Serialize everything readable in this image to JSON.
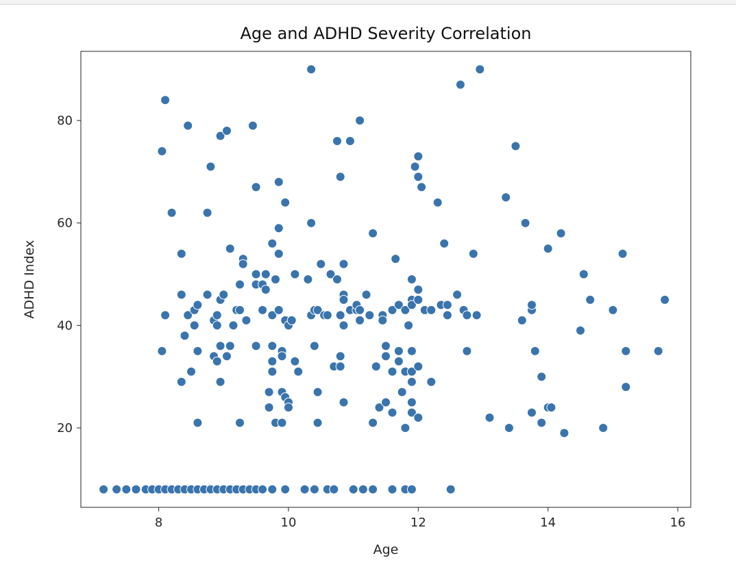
{
  "chart_data": {
    "type": "scatter",
    "title": "Age and ADHD Severity Correlation",
    "xlabel": "Age",
    "ylabel": "ADHD Index",
    "xlim": [
      6.8,
      16.2
    ],
    "ylim": [
      4.5,
      93.5
    ],
    "xticks": [
      8,
      10,
      12,
      14,
      16
    ],
    "yticks": [
      20,
      40,
      60,
      80
    ],
    "grid": false,
    "marker_color": "#3a74ad",
    "marker_edge_color": "#ffffff",
    "points": [
      [
        7.15,
        8
      ],
      [
        7.35,
        8
      ],
      [
        7.5,
        8
      ],
      [
        7.65,
        8
      ],
      [
        7.8,
        8
      ],
      [
        7.9,
        8
      ],
      [
        8.0,
        8
      ],
      [
        8.1,
        8
      ],
      [
        8.2,
        8
      ],
      [
        8.3,
        8
      ],
      [
        8.4,
        8
      ],
      [
        8.5,
        8
      ],
      [
        8.6,
        8
      ],
      [
        8.7,
        8
      ],
      [
        8.8,
        8
      ],
      [
        8.9,
        8
      ],
      [
        9.0,
        8
      ],
      [
        9.1,
        8
      ],
      [
        9.2,
        8
      ],
      [
        9.3,
        8
      ],
      [
        9.4,
        8
      ],
      [
        9.5,
        8
      ],
      [
        9.6,
        8
      ],
      [
        9.75,
        8
      ],
      [
        9.95,
        8
      ],
      [
        10.25,
        8
      ],
      [
        10.4,
        8
      ],
      [
        10.6,
        8
      ],
      [
        10.7,
        8
      ],
      [
        11.0,
        8
      ],
      [
        11.15,
        8
      ],
      [
        11.3,
        8
      ],
      [
        11.6,
        8
      ],
      [
        11.8,
        8
      ],
      [
        11.9,
        8
      ],
      [
        12.5,
        8
      ],
      [
        8.1,
        84
      ],
      [
        8.05,
        74
      ],
      [
        8.45,
        79
      ],
      [
        8.2,
        62
      ],
      [
        8.8,
        71
      ],
      [
        8.95,
        77
      ],
      [
        9.05,
        78
      ],
      [
        9.45,
        79
      ],
      [
        9.5,
        67
      ],
      [
        8.75,
        62
      ],
      [
        8.35,
        54
      ],
      [
        8.1,
        42
      ],
      [
        8.05,
        35
      ],
      [
        8.4,
        38
      ],
      [
        8.35,
        29
      ],
      [
        8.5,
        31
      ],
      [
        8.6,
        21
      ],
      [
        8.35,
        46
      ],
      [
        8.45,
        42
      ],
      [
        8.55,
        43
      ],
      [
        8.6,
        44
      ],
      [
        8.55,
        40
      ],
      [
        8.6,
        35
      ],
      [
        8.75,
        46
      ],
      [
        8.85,
        41
      ],
      [
        8.9,
        40
      ],
      [
        8.85,
        34
      ],
      [
        8.9,
        33
      ],
      [
        8.95,
        29
      ],
      [
        8.9,
        42
      ],
      [
        8.95,
        45
      ],
      [
        9.0,
        46
      ],
      [
        9.05,
        34
      ],
      [
        8.95,
        36
      ],
      [
        9.1,
        36
      ],
      [
        9.15,
        40
      ],
      [
        9.2,
        43
      ],
      [
        9.25,
        43
      ],
      [
        9.1,
        55
      ],
      [
        9.25,
        48
      ],
      [
        9.3,
        53
      ],
      [
        9.3,
        52
      ],
      [
        9.25,
        21
      ],
      [
        9.35,
        41
      ],
      [
        9.5,
        48
      ],
      [
        9.5,
        50
      ],
      [
        9.5,
        36
      ],
      [
        9.6,
        48
      ],
      [
        9.6,
        43
      ],
      [
        9.65,
        50
      ],
      [
        9.65,
        47
      ],
      [
        9.7,
        27
      ],
      [
        9.7,
        24
      ],
      [
        9.75,
        42
      ],
      [
        9.75,
        56
      ],
      [
        9.8,
        21
      ],
      [
        9.75,
        31
      ],
      [
        9.75,
        33
      ],
      [
        9.75,
        36
      ],
      [
        9.8,
        49
      ],
      [
        9.85,
        54
      ],
      [
        9.85,
        59
      ],
      [
        9.85,
        68
      ],
      [
        9.85,
        43
      ],
      [
        9.9,
        35
      ],
      [
        9.9,
        34
      ],
      [
        9.9,
        27
      ],
      [
        9.9,
        21
      ],
      [
        9.95,
        41
      ],
      [
        9.95,
        26
      ],
      [
        10.0,
        25
      ],
      [
        10.0,
        24
      ],
      [
        9.95,
        64
      ],
      [
        10.0,
        40
      ],
      [
        10.05,
        41
      ],
      [
        10.1,
        50
      ],
      [
        10.1,
        33
      ],
      [
        10.15,
        31
      ],
      [
        10.3,
        49
      ],
      [
        10.35,
        90
      ],
      [
        10.35,
        60
      ],
      [
        10.35,
        42
      ],
      [
        10.4,
        43
      ],
      [
        10.4,
        36
      ],
      [
        10.45,
        43
      ],
      [
        10.45,
        27
      ],
      [
        10.45,
        21
      ],
      [
        10.5,
        52
      ],
      [
        10.55,
        42
      ],
      [
        10.6,
        42
      ],
      [
        10.65,
        50
      ],
      [
        10.7,
        32
      ],
      [
        10.75,
        49
      ],
      [
        10.75,
        76
      ],
      [
        10.8,
        69
      ],
      [
        10.8,
        34
      ],
      [
        10.8,
        32
      ],
      [
        10.8,
        42
      ],
      [
        10.85,
        52
      ],
      [
        10.85,
        46
      ],
      [
        10.85,
        45
      ],
      [
        10.85,
        40
      ],
      [
        10.85,
        25
      ],
      [
        10.95,
        43
      ],
      [
        10.95,
        76
      ],
      [
        11.05,
        43
      ],
      [
        11.05,
        44
      ],
      [
        11.1,
        43
      ],
      [
        11.1,
        41
      ],
      [
        11.1,
        80
      ],
      [
        11.2,
        46
      ],
      [
        11.25,
        42
      ],
      [
        11.3,
        58
      ],
      [
        11.3,
        21
      ],
      [
        11.35,
        32
      ],
      [
        11.4,
        24
      ],
      [
        11.45,
        42
      ],
      [
        11.45,
        41
      ],
      [
        11.5,
        36
      ],
      [
        11.5,
        34
      ],
      [
        11.5,
        25
      ],
      [
        11.6,
        43
      ],
      [
        11.6,
        31
      ],
      [
        11.6,
        23
      ],
      [
        11.65,
        53
      ],
      [
        11.7,
        44
      ],
      [
        11.7,
        35
      ],
      [
        11.7,
        33
      ],
      [
        11.75,
        27
      ],
      [
        11.8,
        43
      ],
      [
        11.8,
        31
      ],
      [
        11.8,
        20
      ],
      [
        11.85,
        40
      ],
      [
        11.9,
        49
      ],
      [
        11.9,
        45
      ],
      [
        11.9,
        44
      ],
      [
        11.9,
        35
      ],
      [
        11.9,
        31
      ],
      [
        11.9,
        29
      ],
      [
        11.9,
        25
      ],
      [
        11.9,
        23
      ],
      [
        11.95,
        71
      ],
      [
        12.0,
        73
      ],
      [
        12.0,
        69
      ],
      [
        12.0,
        47
      ],
      [
        12.0,
        45
      ],
      [
        12.0,
        32
      ],
      [
        12.0,
        22
      ],
      [
        12.05,
        67
      ],
      [
        12.1,
        43
      ],
      [
        12.2,
        43
      ],
      [
        12.2,
        29
      ],
      [
        12.3,
        64
      ],
      [
        12.35,
        44
      ],
      [
        12.4,
        56
      ],
      [
        12.45,
        44
      ],
      [
        12.45,
        42
      ],
      [
        12.6,
        46
      ],
      [
        12.65,
        87
      ],
      [
        12.7,
        43
      ],
      [
        12.75,
        42
      ],
      [
        12.75,
        35
      ],
      [
        12.85,
        54
      ],
      [
        12.9,
        42
      ],
      [
        12.95,
        90
      ],
      [
        13.1,
        22
      ],
      [
        13.35,
        65
      ],
      [
        13.4,
        20
      ],
      [
        13.5,
        75
      ],
      [
        13.6,
        41
      ],
      [
        13.65,
        60
      ],
      [
        13.75,
        43
      ],
      [
        13.75,
        44
      ],
      [
        13.75,
        23
      ],
      [
        13.8,
        35
      ],
      [
        13.9,
        30
      ],
      [
        13.9,
        21
      ],
      [
        14.0,
        55
      ],
      [
        14.0,
        24
      ],
      [
        14.05,
        24
      ],
      [
        14.2,
        58
      ],
      [
        14.25,
        19
      ],
      [
        14.5,
        39
      ],
      [
        14.55,
        50
      ],
      [
        14.65,
        45
      ],
      [
        14.85,
        20
      ],
      [
        15.0,
        43
      ],
      [
        15.15,
        54
      ],
      [
        15.2,
        35
      ],
      [
        15.2,
        28
      ],
      [
        15.7,
        35
      ],
      [
        15.8,
        45
      ]
    ]
  }
}
